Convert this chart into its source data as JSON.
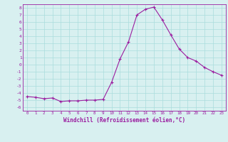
{
  "x": [
    0,
    1,
    2,
    3,
    4,
    5,
    6,
    7,
    8,
    9,
    10,
    11,
    12,
    13,
    14,
    15,
    16,
    17,
    18,
    19,
    20,
    21,
    22,
    23
  ],
  "y": [
    -4.5,
    -4.6,
    -4.8,
    -4.7,
    -5.2,
    -5.1,
    -5.1,
    -5.0,
    -5.0,
    -4.9,
    -2.5,
    0.8,
    3.2,
    7.0,
    7.8,
    8.1,
    6.3,
    4.2,
    2.2,
    1.0,
    0.5,
    -0.4,
    -1.0,
    -1.5
  ],
  "line_color": "#9b1ea0",
  "marker": "+",
  "marker_size": 3,
  "bg_color": "#d8f0f0",
  "grid_color": "#aadddd",
  "xlabel": "Windchill (Refroidissement éolien,°C)",
  "xlabel_color": "#9b1ea0",
  "tick_color": "#9b1ea0",
  "ylim": [
    -6.5,
    8.5
  ],
  "xlim": [
    -0.5,
    23.5
  ],
  "yticks": [
    -6,
    -5,
    -4,
    -3,
    -2,
    -1,
    0,
    1,
    2,
    3,
    4,
    5,
    6,
    7,
    8
  ],
  "xticks": [
    0,
    1,
    2,
    3,
    4,
    5,
    6,
    7,
    8,
    9,
    10,
    11,
    12,
    13,
    14,
    15,
    16,
    17,
    18,
    19,
    20,
    21,
    22,
    23
  ],
  "spine_color": "#9b1ea0",
  "figsize": [
    3.2,
    2.0
  ],
  "dpi": 100
}
